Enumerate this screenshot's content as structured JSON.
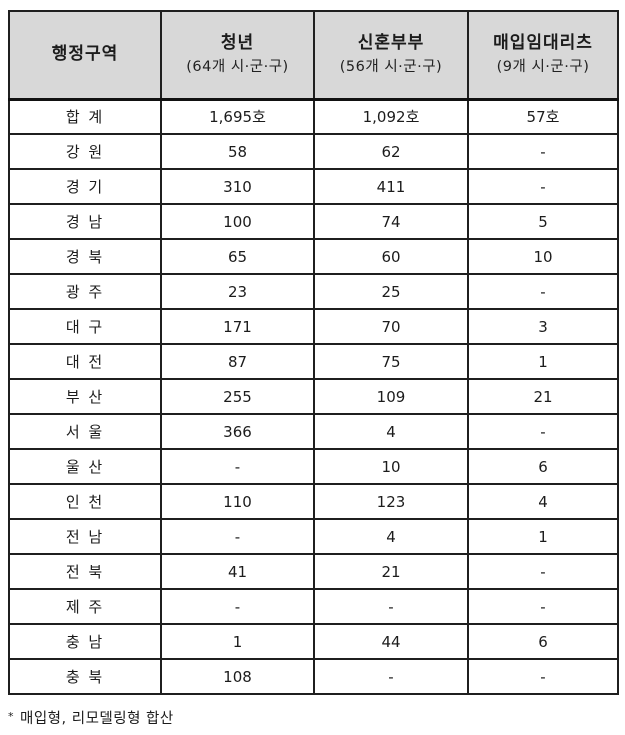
{
  "table": {
    "headers": [
      {
        "title": "행정구역",
        "subtitle": ""
      },
      {
        "title": "청년",
        "subtitle": "(64개 시·군·구)"
      },
      {
        "title": "신혼부부",
        "subtitle": "(56개 시·군·구)"
      },
      {
        "title": "매입임대리츠",
        "subtitle": "(9개 시·군·구)"
      }
    ],
    "rows": [
      {
        "region": "합 계",
        "youth": "1,695호",
        "newlywed": "1,092호",
        "reits": "57호"
      },
      {
        "region": "강 원",
        "youth": "58",
        "newlywed": "62",
        "reits": "-"
      },
      {
        "region": "경 기",
        "youth": "310",
        "newlywed": "411",
        "reits": "-"
      },
      {
        "region": "경 남",
        "youth": "100",
        "newlywed": "74",
        "reits": "5"
      },
      {
        "region": "경 북",
        "youth": "65",
        "newlywed": "60",
        "reits": "10"
      },
      {
        "region": "광 주",
        "youth": "23",
        "newlywed": "25",
        "reits": "-"
      },
      {
        "region": "대 구",
        "youth": "171",
        "newlywed": "70",
        "reits": "3"
      },
      {
        "region": "대 전",
        "youth": "87",
        "newlywed": "75",
        "reits": "1"
      },
      {
        "region": "부 산",
        "youth": "255",
        "newlywed": "109",
        "reits": "21"
      },
      {
        "region": "서 울",
        "youth": "366",
        "newlywed": "4",
        "reits": "-"
      },
      {
        "region": "울 산",
        "youth": "-",
        "newlywed": "10",
        "reits": "6"
      },
      {
        "region": "인 천",
        "youth": "110",
        "newlywed": "123",
        "reits": "4"
      },
      {
        "region": "전 남",
        "youth": "-",
        "newlywed": "4",
        "reits": "1"
      },
      {
        "region": "전 북",
        "youth": "41",
        "newlywed": "21",
        "reits": "-"
      },
      {
        "region": "제 주",
        "youth": "-",
        "newlywed": "-",
        "reits": "-"
      },
      {
        "region": "충 남",
        "youth": "1",
        "newlywed": "44",
        "reits": "6"
      },
      {
        "region": "충 북",
        "youth": "108",
        "newlywed": "-",
        "reits": "-"
      }
    ],
    "footnote": {
      "marker": "*",
      "text": "매입형, 리모델링형  합산"
    },
    "colors": {
      "header_bg": "#d8d8d8",
      "border": "#1f1f1f",
      "text": "#1c1c1c"
    }
  }
}
